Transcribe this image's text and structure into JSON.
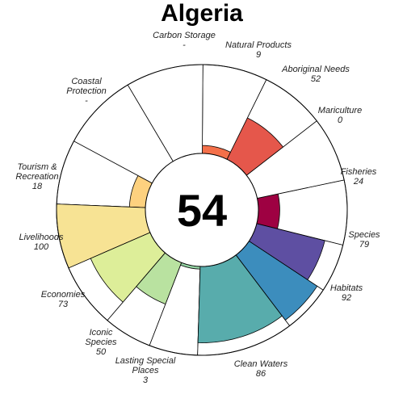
{
  "chart_data": {
    "type": "pie",
    "subtype": "flower-plot",
    "title": "Algeria",
    "overall_score": "54",
    "scale_max": 100,
    "petals": [
      {
        "label": "Fisheries",
        "value": 24,
        "display": "24",
        "weight": 1,
        "color": "#9E0142"
      },
      {
        "label": "Mariculture",
        "value": 0,
        "display": "0",
        "weight": 1,
        "color": "#D53E4F"
      },
      {
        "label": "Aboriginal Needs",
        "value": 52,
        "display": "52",
        "weight": 1,
        "color": "#E5574B"
      },
      {
        "label": "Natural Products",
        "value": 9,
        "display": "9",
        "weight": 1,
        "color": "#F4704A"
      },
      {
        "label": "Carbon Storage",
        "value": null,
        "display": "-",
        "weight": 1.2,
        "color": "#FDAE61"
      },
      {
        "label": "Coastal Protection",
        "value": null,
        "display": "-",
        "weight": 1.2,
        "color": "#FEE08B"
      },
      {
        "label": "Tourism & Recreation",
        "value": 18,
        "display": "18",
        "weight": 1,
        "color": "#FDD17F"
      },
      {
        "label": "Livelihoods",
        "value": 100,
        "display": "100",
        "weight": 1,
        "color": "#F7E394"
      },
      {
        "label": "Economies",
        "value": 73,
        "display": "73",
        "weight": 1,
        "color": "#DDEE99"
      },
      {
        "label": "Iconic Species",
        "value": 50,
        "display": "50",
        "weight": 0.75,
        "color": "#B9E2A0"
      },
      {
        "label": "Lasting Special Places",
        "value": 3,
        "display": "3",
        "weight": 0.75,
        "color": "#94D4A4"
      },
      {
        "label": "Clean Waters",
        "value": 86,
        "display": "86",
        "weight": 1.5,
        "color": "#58ACAC"
      },
      {
        "label": "Habitats",
        "value": 92,
        "display": "92",
        "weight": 0.75,
        "color": "#3C8DBD"
      },
      {
        "label": "Species",
        "value": 79,
        "display": "79",
        "weight": 0.75,
        "color": "#5E4FA2"
      }
    ]
  }
}
